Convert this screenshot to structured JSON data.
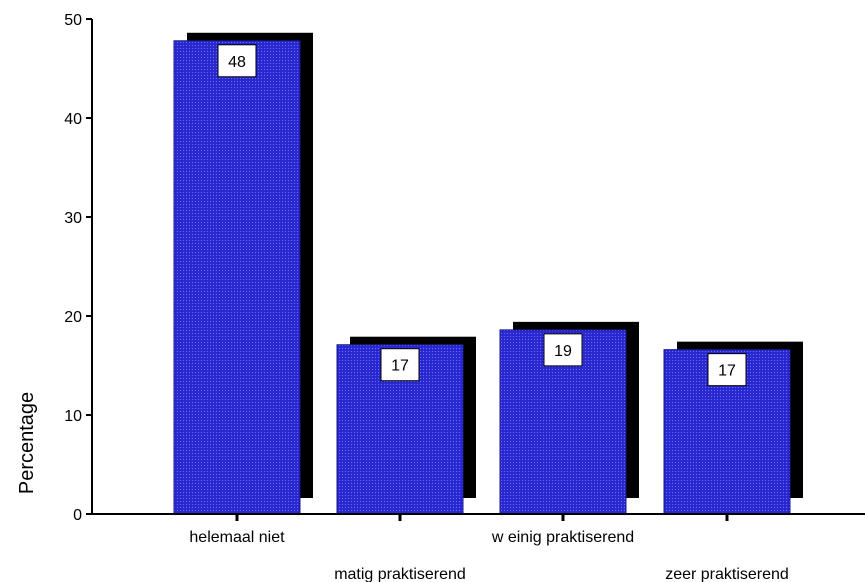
{
  "chart_data": {
    "type": "bar",
    "categories": [
      "helemaal niet",
      "matig praktiserend",
      "w einig praktiserend",
      "zeer praktiserend"
    ],
    "values": [
      47.8,
      17.1,
      18.6,
      16.6
    ],
    "data_labels": [
      "48",
      "17",
      "19",
      "17"
    ],
    "ylabel": "Percentage",
    "xlabel": "",
    "ylim": [
      0,
      50
    ],
    "yticks": [
      0,
      10,
      20,
      30,
      40,
      50
    ],
    "grid": false,
    "bar_color": "#2b2bd6",
    "shadow_color": "#000000"
  }
}
